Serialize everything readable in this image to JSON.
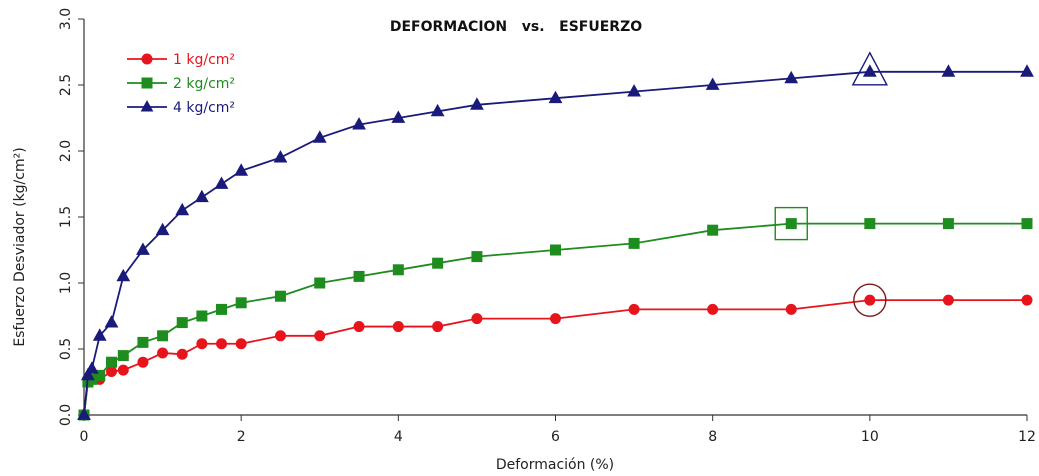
{
  "chart_data": {
    "type": "line",
    "title": "DEFORMACION   vs.   ESFUERZO",
    "xlabel": "Deformación (%)",
    "ylabel": "Esfuerzo Desviador (kg/cm²)",
    "xlim": [
      0,
      12
    ],
    "ylim": [
      0,
      3.0
    ],
    "x_ticks": [
      "0",
      "2",
      "4",
      "6",
      "8",
      "10",
      "12"
    ],
    "y_ticks": [
      "0.0",
      "0.5",
      "1.0",
      "1.5",
      "2.0",
      "2.5",
      "3.0"
    ],
    "legend_position": "top-left",
    "grid": false,
    "series": [
      {
        "name": "1 kg/cm²",
        "color": "#e8141c",
        "marker": "circle",
        "x": [
          0,
          0.05,
          0.2,
          0.35,
          0.5,
          0.75,
          1.0,
          1.25,
          1.5,
          1.75,
          2.0,
          2.5,
          3.0,
          3.5,
          4.0,
          4.5,
          5.0,
          6.0,
          7.0,
          8.0,
          9.0,
          10.0,
          11.0,
          12.0
        ],
        "values": [
          0,
          0.25,
          0.27,
          0.33,
          0.34,
          0.4,
          0.47,
          0.46,
          0.54,
          0.54,
          0.54,
          0.6,
          0.6,
          0.67,
          0.67,
          0.67,
          0.73,
          0.73,
          0.8,
          0.8,
          0.8,
          0.87,
          0.87,
          0.87
        ]
      },
      {
        "name": "2 kg/cm²",
        "color": "#1e8c1e",
        "marker": "square",
        "x": [
          0,
          0.05,
          0.1,
          0.2,
          0.35,
          0.5,
          0.75,
          1.0,
          1.25,
          1.5,
          1.75,
          2.0,
          2.5,
          3.0,
          3.5,
          4.0,
          4.5,
          5.0,
          6.0,
          7.0,
          8.0,
          9.0,
          10.0,
          11.0,
          12.0
        ],
        "values": [
          0,
          0.25,
          0.27,
          0.3,
          0.4,
          0.45,
          0.55,
          0.6,
          0.7,
          0.75,
          0.8,
          0.85,
          0.9,
          1.0,
          1.05,
          1.1,
          1.15,
          1.2,
          1.25,
          1.3,
          1.4,
          1.45,
          1.45,
          1.45,
          1.45
        ]
      },
      {
        "name": "4 kg/cm²",
        "color": "#1a1a7a",
        "marker": "triangle",
        "x": [
          0,
          0.05,
          0.1,
          0.2,
          0.35,
          0.5,
          0.75,
          1.0,
          1.25,
          1.5,
          1.75,
          2.0,
          2.5,
          3.0,
          3.5,
          4.0,
          4.5,
          5.0,
          6.0,
          7.0,
          8.0,
          9.0,
          10.0,
          11.0,
          12.0
        ],
        "values": [
          0,
          0.3,
          0.35,
          0.6,
          0.7,
          1.05,
          1.25,
          1.4,
          1.55,
          1.65,
          1.75,
          1.85,
          1.95,
          2.1,
          2.2,
          2.25,
          2.3,
          2.35,
          2.4,
          2.45,
          2.5,
          2.55,
          2.6,
          2.6,
          2.6
        ]
      }
    ],
    "highlights": [
      {
        "series": 0,
        "x": 10.0,
        "y": 0.87,
        "shape": "circle"
      },
      {
        "series": 1,
        "x": 9.0,
        "y": 1.45,
        "shape": "square"
      },
      {
        "series": 2,
        "x": 10.0,
        "y": 2.6,
        "shape": "triangle"
      }
    ]
  }
}
